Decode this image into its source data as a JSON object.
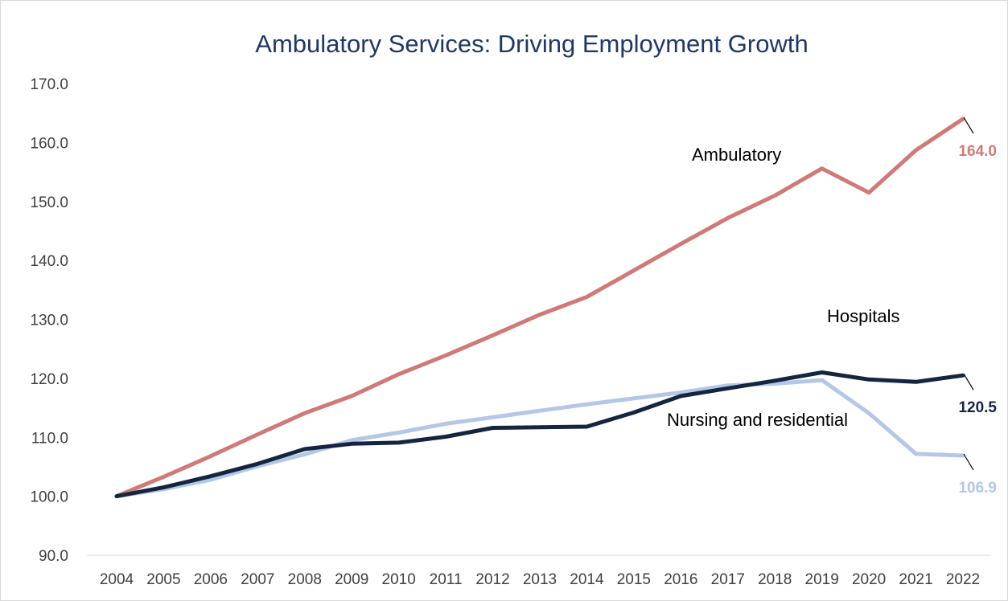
{
  "chart_data": {
    "type": "line",
    "title": "Ambulatory Services: Driving Employment Growth",
    "xlabel": "",
    "ylabel": "",
    "x": [
      "2004",
      "2005",
      "2006",
      "2007",
      "2008",
      "2009",
      "2010",
      "2011",
      "2012",
      "2013",
      "2014",
      "2015",
      "2016",
      "2017",
      "2018",
      "2019",
      "2020",
      "2021",
      "2022"
    ],
    "ylim": [
      90,
      170
    ],
    "yticks": [
      "90.0",
      "100.0",
      "110.0",
      "120.0",
      "130.0",
      "140.0",
      "150.0",
      "160.0",
      "170.0"
    ],
    "grid": false,
    "legend": "none",
    "series": [
      {
        "name": "Ambulatory",
        "color": "#d07a78",
        "end_label": "164.0",
        "values": [
          100.0,
          103.3,
          106.8,
          110.5,
          114.1,
          117.0,
          120.7,
          123.9,
          127.3,
          130.8,
          133.8,
          138.3,
          142.8,
          147.2,
          151.0,
          155.6,
          151.5,
          158.7,
          164.0
        ]
      },
      {
        "name": "Hospitals",
        "color": "#142540",
        "end_label": "120.5",
        "values": [
          100.0,
          101.5,
          103.4,
          105.5,
          108.0,
          108.9,
          109.1,
          110.1,
          111.6,
          111.7,
          111.8,
          114.2,
          117.0,
          118.3,
          119.6,
          121.0,
          119.8,
          119.4,
          120.5
        ]
      },
      {
        "name": "Nursing and residential",
        "color": "#b4c7e7",
        "end_label": "106.9",
        "values": [
          100.0,
          101.2,
          102.8,
          105.1,
          107.1,
          109.5,
          110.8,
          112.3,
          113.4,
          114.5,
          115.6,
          116.6,
          117.6,
          118.8,
          119.1,
          119.7,
          114.1,
          107.2,
          106.9
        ]
      }
    ]
  }
}
